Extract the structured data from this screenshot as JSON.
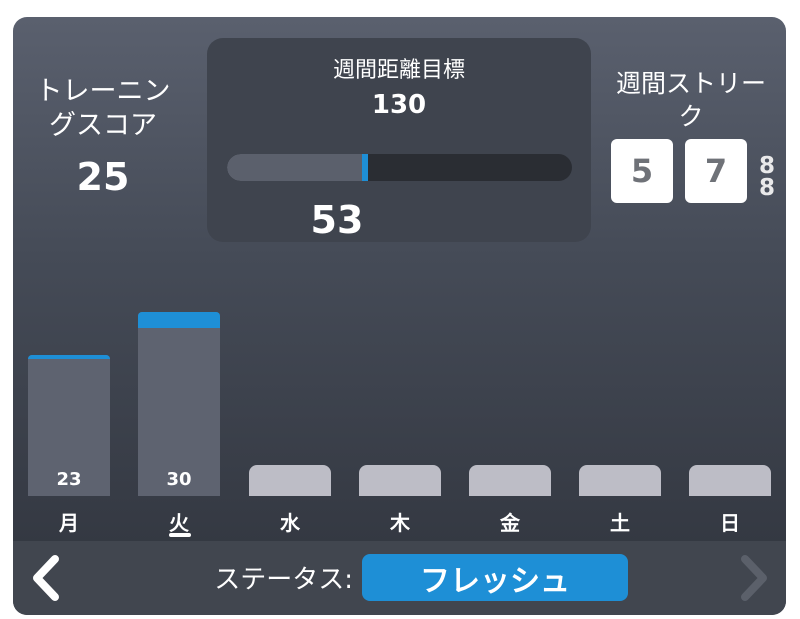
{
  "training_score": {
    "label": "トレーニングスコア",
    "value": "25"
  },
  "weekly_goal": {
    "title": "週間距離目標",
    "target": "130",
    "current": "53",
    "progress": 0.4077
  },
  "weekly_streak": {
    "label": "週間ストリーク",
    "digits": [
      "5",
      "7"
    ],
    "extra_glyph": "8"
  },
  "chart_data": {
    "type": "bar",
    "categories": [
      "月",
      "火",
      "水",
      "木",
      "金",
      "土",
      "日"
    ],
    "values": [
      23,
      30,
      null,
      null,
      null,
      null,
      null
    ],
    "value_labels": [
      "23",
      "30",
      "",
      "",
      "",
      "",
      ""
    ],
    "selected_day": "火",
    "colors": {
      "bar": "#5e6370",
      "cap": "#1e8fd6",
      "empty": "#bdbdc6"
    }
  },
  "status": {
    "label": "ステータス:",
    "value": "フレッシュ"
  },
  "nav": {
    "prev_icon": "chevron-left-icon",
    "next_icon": "chevron-right-icon"
  },
  "colors": {
    "accent": "#1e8fd6"
  }
}
